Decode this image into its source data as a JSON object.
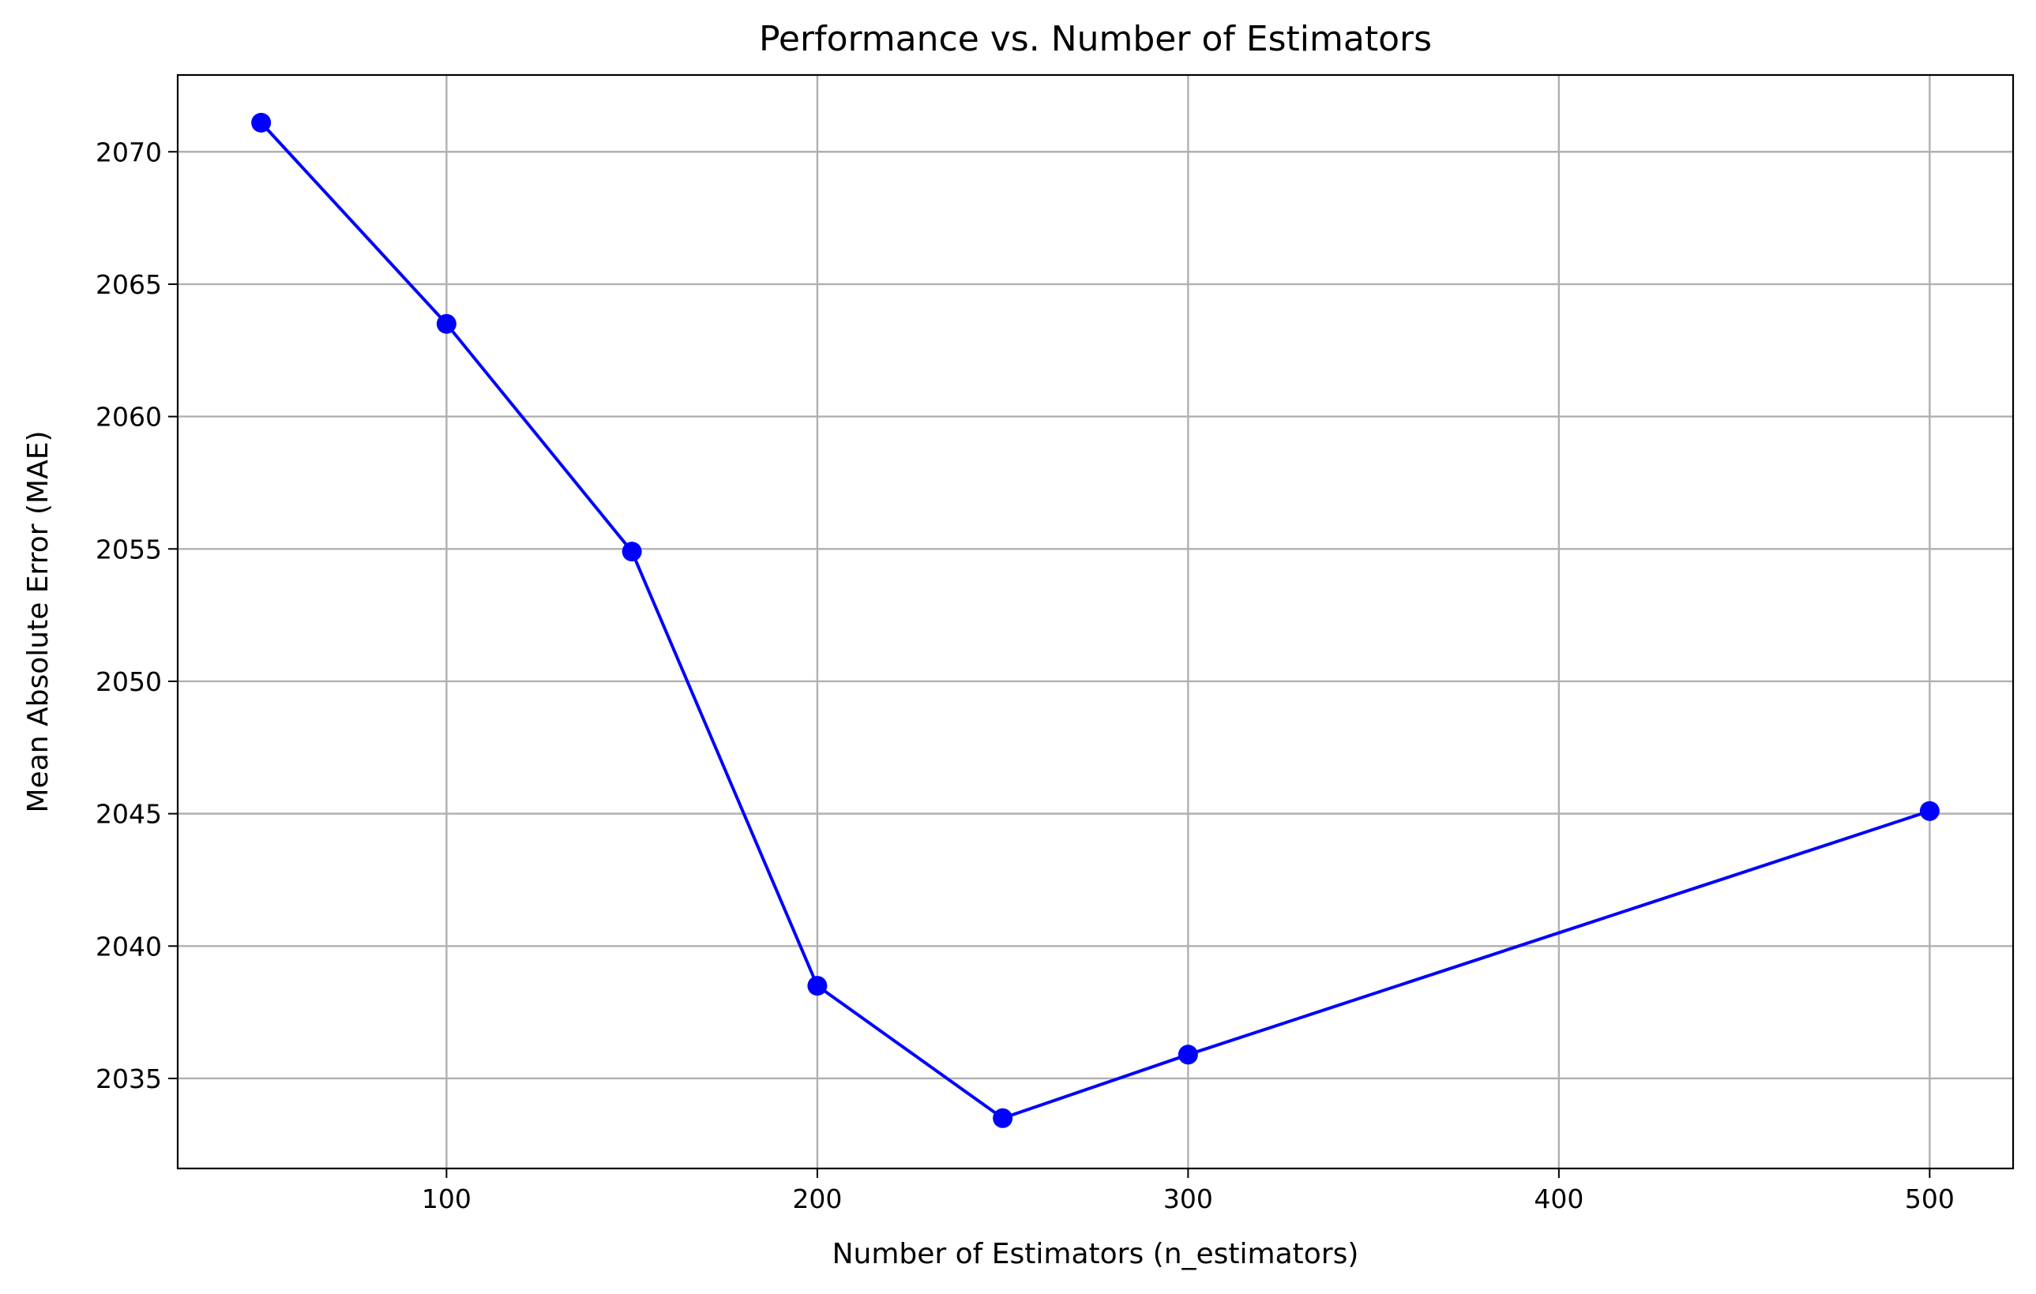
{
  "chart_data": {
    "type": "line",
    "title": "Performance vs. Number of Estimators",
    "xlabel": "Number of Estimators (n_estimators)",
    "ylabel": "Mean Absolute Error (MAE)",
    "xlim": [
      27.5,
      522.5
    ],
    "ylim": [
      2031.6,
      2072.9
    ],
    "xticks": [
      100,
      200,
      300,
      400,
      500
    ],
    "yticks": [
      2035,
      2040,
      2045,
      2050,
      2055,
      2060,
      2065,
      2070
    ],
    "grid": true,
    "series": [
      {
        "color": "#0000ff",
        "marker": "circle",
        "x": [
          50,
          100,
          150,
          200,
          250,
          300,
          500
        ],
        "y": [
          2071.1,
          2063.5,
          2054.9,
          2038.5,
          2033.5,
          2035.9,
          2045.1
        ]
      }
    ]
  }
}
